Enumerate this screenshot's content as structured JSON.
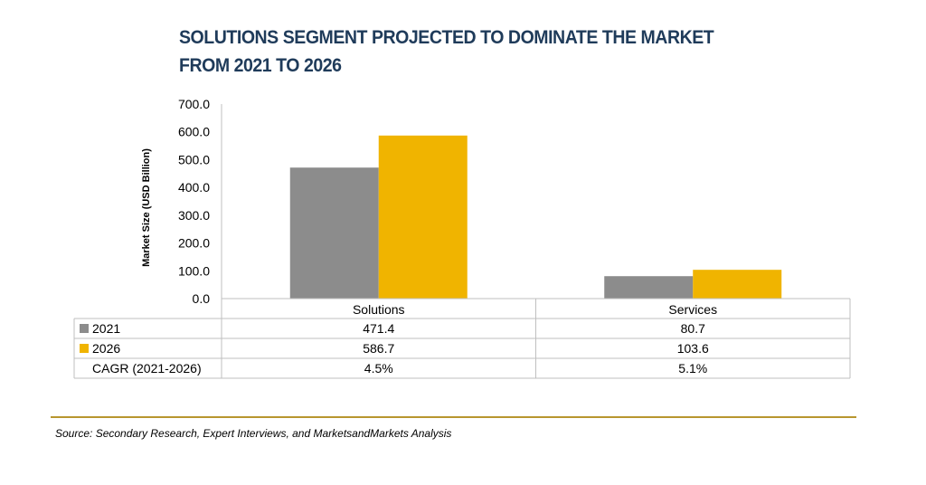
{
  "chart_data": {
    "type": "bar",
    "title_lines": [
      "SOLUTIONS SEGMENT PROJECTED TO DOMINATE THE MARKET",
      "FROM 2021 TO 2026"
    ],
    "ylabel": "Market Size (USD Billion)",
    "ylim": [
      0,
      700
    ],
    "yticks": [
      "0.0",
      "100.0",
      "200.0",
      "300.0",
      "400.0",
      "500.0",
      "600.0",
      "700.0"
    ],
    "categories": [
      "Solutions",
      "Services"
    ],
    "series": [
      {
        "name": "2021",
        "color": "#8c8c8c",
        "values": [
          471.4,
          80.7
        ],
        "labels": [
          "471.4",
          "80.7"
        ]
      },
      {
        "name": "2026",
        "color": "#f0b400",
        "values": [
          586.7,
          103.6
        ],
        "labels": [
          "586.7",
          "103.6"
        ]
      }
    ],
    "extra_row": {
      "name": "CAGR (2021-2026)",
      "labels": [
        "4.5%",
        "5.1%"
      ]
    },
    "grid": false,
    "legend": "data table below chart"
  },
  "source": "Source: Secondary Research, Expert Interviews, and MarketsandMarkets Analysis",
  "colors": {
    "title": "#1f3b5a",
    "divider": "#b8962f",
    "axis": "#bfbfbf"
  }
}
